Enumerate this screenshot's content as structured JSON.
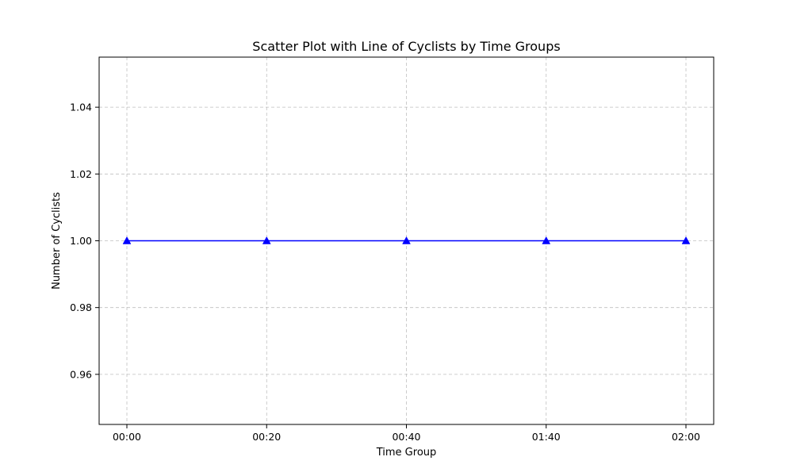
{
  "chart_data": {
    "type": "line",
    "title": "Scatter Plot with Line of Cyclists by Time Groups",
    "xlabel": "Time Group",
    "ylabel": "Number of Cyclists",
    "categories": [
      "00:00",
      "00:20",
      "00:40",
      "01:40",
      "02:00"
    ],
    "series": [
      {
        "values": [
          1.0,
          1.0,
          1.0,
          1.0,
          1.0
        ],
        "color": "#0000ff",
        "marker": "triangle-up"
      }
    ],
    "ylim": [
      0.945,
      1.055
    ],
    "yticks": [
      0.96,
      0.98,
      1.0,
      1.02,
      1.04
    ],
    "ytick_labels": [
      "0.96",
      "0.98",
      "1.00",
      "1.02",
      "1.04"
    ],
    "grid": true,
    "legend": "none"
  }
}
